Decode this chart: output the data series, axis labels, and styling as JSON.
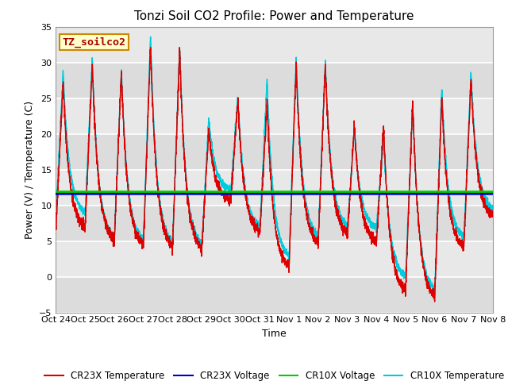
{
  "title": "Tonzi Soil CO2 Profile: Power and Temperature",
  "xlabel": "Time",
  "ylabel": "Power (V) / Temperature (C)",
  "ylim": [
    -5,
    35
  ],
  "xlim": [
    0,
    15
  ],
  "bg_color": "#e8e8e8",
  "annotation_text": "TZ_soilco2",
  "annotation_bg": "#ffffcc",
  "annotation_border": "#cc8800",
  "xtick_labels": [
    "Oct 24",
    "Oct 25",
    "Oct 26",
    "Oct 27",
    "Oct 28",
    "Oct 29",
    "Oct 30",
    "Oct 31",
    "Nov 1",
    "Nov 2",
    "Nov 3",
    "Nov 4",
    "Nov 5",
    "Nov 6",
    "Nov 7",
    "Nov 8"
  ],
  "voltage_CR23X": 11.6,
  "voltage_CR10X": 11.85,
  "cr23x_color": "#dd0000",
  "cr10x_color": "#00ccdd",
  "cr23x_volt_color": "#0000cc",
  "cr10x_volt_color": "#00cc00",
  "legend_labels": [
    "CR23X Temperature",
    "CR23X Voltage",
    "CR10X Voltage",
    "CR10X Temperature"
  ],
  "legend_colors": [
    "#dd0000",
    "#0000cc",
    "#00cc00",
    "#00ccdd"
  ],
  "title_fontsize": 11,
  "label_fontsize": 9,
  "tick_fontsize": 8
}
